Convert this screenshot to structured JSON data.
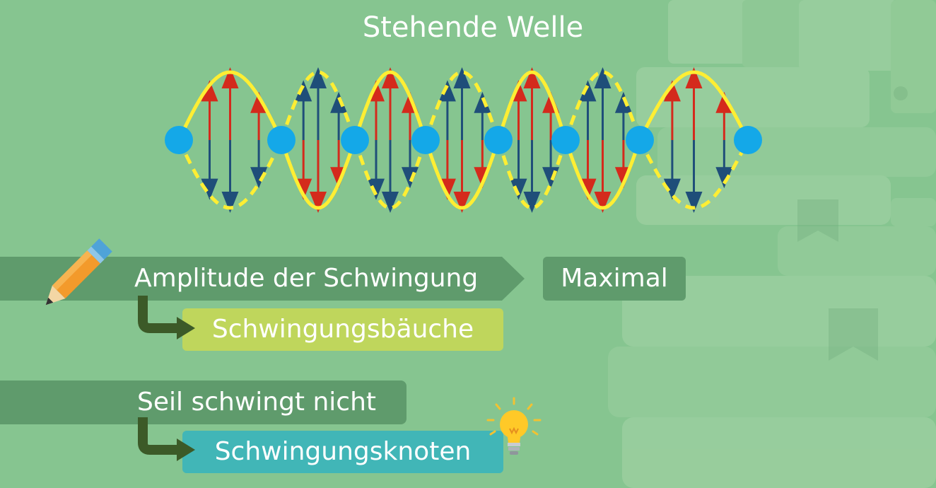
{
  "title": "Stehende Welle",
  "statements": [
    {
      "label": "Amplitude der Schwingung",
      "value": "Maximal",
      "result": "Schwingungsbäuche"
    },
    {
      "label": "Seil schwingt nicht",
      "result": "Schwingungsknoten"
    }
  ],
  "colors": {
    "background": "#86c590",
    "band": "#5f9b6c",
    "wave": "#ffee33",
    "node": "#14a8e8",
    "arrow_red": "#d42a1c",
    "arrow_blue": "#1f4e79",
    "result_bauch": "#bfd65c",
    "result_knoten": "#41b6b7",
    "connector_arrow": "#3c5a28"
  },
  "icons": [
    "pencil-icon",
    "lightbulb-icon",
    "connector-arrow-icon"
  ]
}
